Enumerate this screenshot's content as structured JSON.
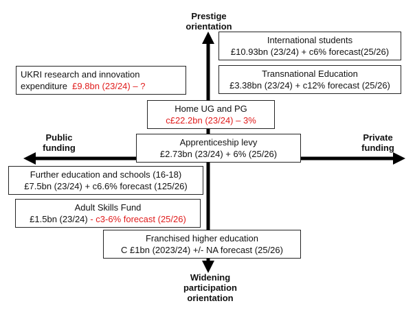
{
  "axes": {
    "top": [
      "Prestige",
      "orientation"
    ],
    "bottom": [
      "Widening",
      "participation",
      "orientation"
    ],
    "left": [
      "Public",
      "funding"
    ],
    "right": [
      "Private",
      "funding"
    ]
  },
  "boxes": {
    "international": {
      "title": "International students",
      "line2": "£10.93bn (23/24) + c6% forecast(25/26)"
    },
    "tne": {
      "title": "Transnational Education",
      "line2": "£3.38bn (23/24) + c12% forecast (25/26)"
    },
    "ukri": {
      "title": "UKRI research and innovation",
      "line2_prefix": "expenditure  ",
      "line2_red": "£9.8bn (23/24) – ?"
    },
    "home": {
      "title": "Home UG and PG",
      "line2_red": "c£22.2bn (23/24) – 3%"
    },
    "apprenticeship": {
      "title": "Apprenticeship levy",
      "line2": "£2.73bn (23/24) + 6% (25/26)"
    },
    "further_ed": {
      "title": "Further education and schools (16-18)",
      "line2": "£7.5bn (23/24) + c6.6% forecast (125/26)"
    },
    "adult_skills": {
      "title": "Adult Skills Fund",
      "line2_prefix": "£1.5bn (23/24) ",
      "line2_red": "- c3-6% forecast (25/26)"
    },
    "franchised": {
      "title": "Franchised higher education",
      "line2": "C £1bn (2023/24) +/- NA forecast (25/26)"
    }
  },
  "colors": {
    "accent_red": "#e01b1b",
    "axis": "#000000",
    "border": "#222222"
  }
}
